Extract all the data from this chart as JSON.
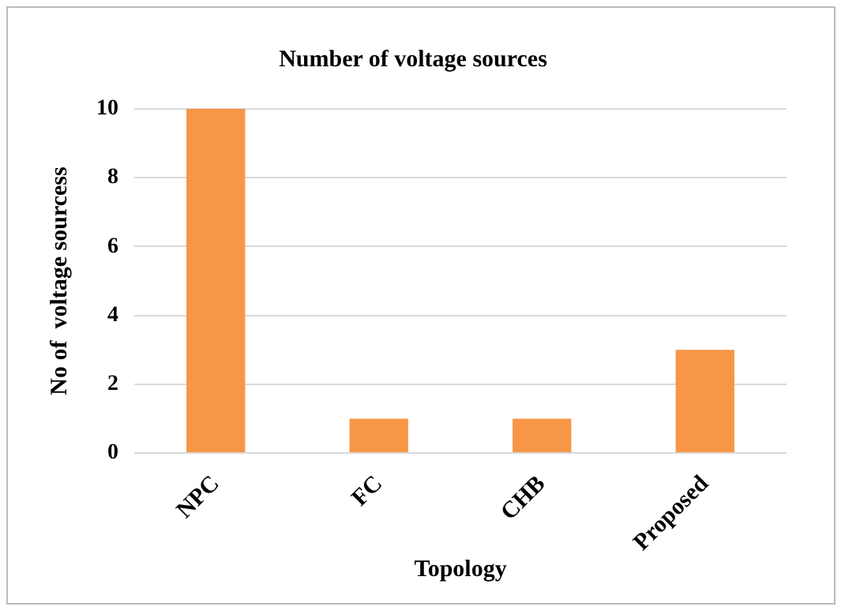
{
  "chart_data": {
    "type": "bar",
    "title": "Number of voltage sources",
    "xlabel": "Topology",
    "ylabel": "No of  voltage sourcess",
    "categories": [
      "NPC",
      "FC",
      "CHB",
      "Proposed"
    ],
    "values": [
      10,
      1,
      1,
      3
    ],
    "color": "#f79646",
    "ylim": [
      0,
      10
    ],
    "yticks": [
      0,
      2,
      4,
      6,
      8,
      10
    ],
    "grid": "y",
    "legend": false
  }
}
